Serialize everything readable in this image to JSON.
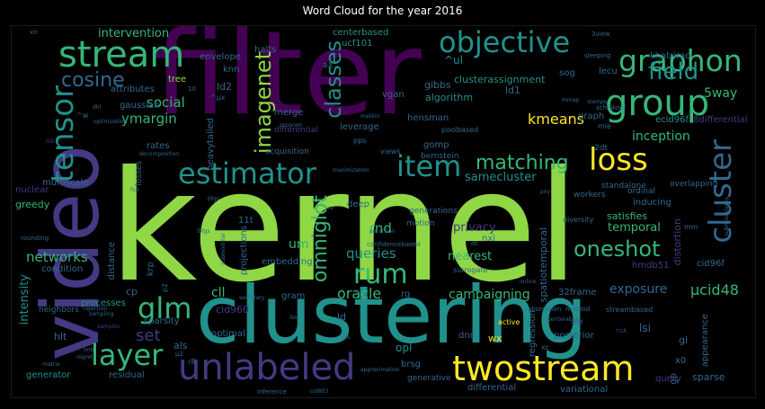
{
  "title": "Word Cloud for the year 2016",
  "palette": {
    "lime": "#8fd744",
    "green": "#35b779",
    "teal": "#21918c",
    "blue": "#31688e",
    "indigo": "#443983",
    "purple": "#440154",
    "yellow": "#fde725"
  },
  "words": {
    "kernel": "kernel",
    "filter": "filter",
    "clustering": "clustering",
    "video": "video",
    "twostream": "twostream",
    "stream": "stream",
    "objective": "objective",
    "graphon": "graphon",
    "group": "group",
    "unlabeled": "unlabeled",
    "estimator": "estimator",
    "item": "item",
    "loss": "loss",
    "layer": "layer",
    "glm": "glm",
    "cluster": "cluster",
    "tensor": "tensor",
    "imagenet": "imagenet",
    "classes": "classes",
    "omniglot": "omniglot",
    "field": "field",
    "cosine": "cosine",
    "matching": "matching",
    "rum": "rum",
    "oneshot": "oneshot",
    "intervention": "intervention",
    "kmeans": "kmeans",
    "oracle": "oracle",
    "ucid48": "µcid48",
    "exposure": "exposure",
    "campaigning": "campaigning",
    "networks": "networks",
    "inception": "inception",
    "queries": "queries",
    "rnd": "rnd",
    "samecluster": "samecluster",
    "fiveway": "5way",
    "social": "social",
    "ymargin": "ymargin",
    "set": "set",
    "um": "um",
    "cll": "cll",
    "privacy": "privacy",
    "nearest": "nearest",
    "temporal": "temporal",
    "satisfies": "satisfies",
    "inducing": "inducing",
    "distortion": "distortion",
    "spatiotemporal": "spatiotemporal",
    "centerbased": "centerbased",
    "ucf101": "ucf101",
    "clusterassignment": "clusterassignment",
    "gibbs": "gibbs",
    "algorithm": "algorithm",
    "ld1": "ld1",
    "ld2": "ld2",
    "sog": "sog",
    "hensman": "hensman",
    "gomp": "gomp",
    "bernstein": "bernstein",
    "knn": "knn",
    "vgan": "vgan",
    "merge": "merge",
    "leverage": "leverage",
    "acquisition": "acquisition",
    "differential": "differential",
    "deep": "deep",
    "tree": "tree",
    "envelope": "envelope",
    "halts": "halts",
    "attributes": "attributes",
    "gaussian": "gaussian",
    "rates": "rates",
    "heavytailed": "heavytailed",
    "losses": "losses",
    "multiscale": "multiscale",
    "nuclear": "nuclear",
    "greedy": "greedy",
    "condition": "condition",
    "intensity": "intensity",
    "neighbors": "neighbors",
    "processes": "processes",
    "sparsity": "sparsity",
    "hlt": "hlt",
    "generator": "generator",
    "residual": "residual",
    "als": "als",
    "optimal": "optimal",
    "cid960": "cid960",
    "gram": "gram",
    "embedding": "embedding",
    "projections": "projections",
    "eleventh": "11t",
    "krp": "krp",
    "cp": "cp",
    "distance": "distance",
    "rg": "rg",
    "ld": "ld",
    "dnn": "dnn",
    "wx": "wx",
    "opl": "opl",
    "brsg": "brsg",
    "generative": "generative",
    "variational": "variational",
    "posterior": "posterior",
    "regression": "regression",
    "lsi": "lsi",
    "x0": "x0",
    "sparse": "sparse",
    "appearance": "appearance",
    "gi": "gi",
    "gp": "gp",
    "query": "query",
    "cid96f": "cid96f",
    "hmdb51": "hmdb51",
    "thirtytwoframe": "32frame",
    "nxi": "nxi",
    "generations": "generations",
    "motion": "motion",
    "ecid96f": "ecid96f",
    "eighthdifferential": "8differential",
    "standalone": "standalone",
    "workers": "workers",
    "ordinal": "ordinal",
    "overlapping": "overlapping",
    "graph": "graph",
    "twodt": "2dt",
    "lecu": "lecu",
    "khatrirao": "khatrirao",
    "poolbased": "poolbased",
    "views": "views",
    "pps": "pps",
    "mle": "mle",
    "active": "active",
    "xc": "xc",
    "streambased": "streambased",
    "diversity": "diversity",
    "surrogate": "surrogate",
    "confidencebased": "confidencebased",
    "ul": "^ul",
    "ux": "^µx",
    "ten": "10",
    "mm": "mm",
    "xir": "xir",
    "threeview": "3view",
    "sleeping": "sleeping",
    "optimization": "optimization",
    "decomposition": "decomposition",
    "program": "program",
    "fv8": "fv8",
    "bfgs": "bfgs",
    "lbfgs": "lbfgs",
    "rounding": "rounding",
    "rejection": "rejection",
    "sampling": "sampling",
    "samples": "samples",
    "matrix": "matrix",
    "regret": "regret",
    "lmb": "lmb",
    "inference": "inference",
    "cid803": "cid803",
    "approximation": "approximation",
    "abstention": "abstention",
    "matroid": "matroid",
    "agd": "agd",
    "risk": "risk",
    "online": "online",
    "secretary": "secretary",
    "bo": "bo",
    "ols": "ols",
    "maximization": "maximization",
    "submodular": "submodular",
    "submodularity": "submodularity",
    "matern": "matérn",
    "scholkopf": "schölkopf",
    "dhl": "dhl",
    "mmap": "mmap",
    "stamps": "stamps",
    "bandit": "bandit",
    "aX": "aX",
    "peration": "peraction",
    "periteration": "periteration",
    "wlabel": "^w",
    "p2": "p2",
    "mu2": "µ2",
    "r8": "r8",
    "xv": "xv",
    "pxy": "pxy",
    "dti": "dti",
    "lob": "lob"
  }
}
